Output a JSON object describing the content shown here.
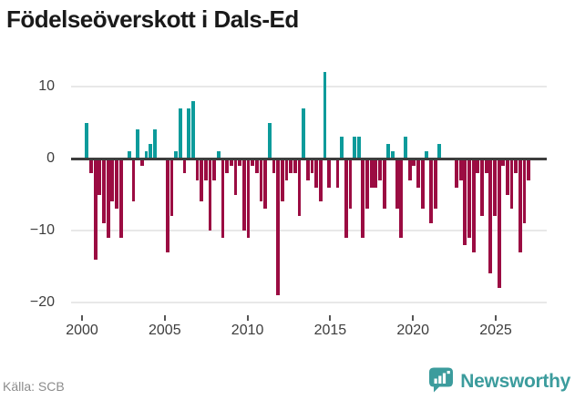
{
  "title": "Födelseöverskott i Dals-Ed",
  "source": "Källa: SCB",
  "brand": {
    "name": "Newsworthy",
    "icon": "bar-chart-bubble-icon",
    "color": "#3c9c9d"
  },
  "colors": {
    "positive": "#0c9b9b",
    "negative": "#9b0c42",
    "axis": "#3d3d3d",
    "grid": "#e8e8e8",
    "title": "#1a1a1a",
    "tick_label": "#3d3d3d",
    "source_text": "#8c8c8c"
  },
  "y_axis_labels": [
    "10",
    "0",
    "−10",
    "−20"
  ],
  "x_axis_labels": [
    "2000",
    "2005",
    "2010",
    "2015",
    "2020",
    "2025"
  ],
  "chart_data": {
    "type": "bar",
    "title": "Födelseöverskott i Dals-Ed",
    "xlabel": "",
    "ylabel": "",
    "frequency": "quarterly",
    "x_start": "2000 Q1",
    "x_ticks": [
      2000,
      2005,
      2010,
      2015,
      2020,
      2025
    ],
    "y_ticks": [
      10,
      0,
      -10,
      -20
    ],
    "ylim": [
      -20.5,
      13
    ],
    "grid": "horizontal",
    "legend": "none",
    "values": [
      5,
      -2,
      -14,
      -5,
      -9,
      -11,
      -6,
      -7,
      -11,
      0,
      1,
      -6,
      4,
      -1,
      1,
      2,
      4,
      0,
      0,
      -13,
      -8,
      1,
      7,
      -2,
      7,
      8,
      -3,
      -6,
      -3,
      -10,
      -3,
      1,
      -11,
      -2,
      -1,
      -5,
      -1,
      -10,
      -11,
      -1,
      -2,
      -6,
      -7,
      5,
      -2,
      -19,
      -6,
      -3,
      -2,
      -2,
      -8,
      7,
      -3,
      -2,
      -4,
      -6,
      12,
      -4,
      0,
      -4,
      3,
      -11,
      -7,
      3,
      3,
      -11,
      -7,
      -4,
      -4,
      -3,
      -7,
      2,
      1,
      -7,
      -11,
      3,
      -3,
      -1,
      -4,
      -7,
      1,
      -9,
      -7,
      2,
      0,
      0,
      0,
      -4,
      -3,
      -12,
      -11,
      -13,
      -2,
      -8,
      -2,
      -16,
      -8,
      -18,
      -1,
      -5,
      -7,
      -2,
      -13,
      -9,
      -3
    ]
  }
}
